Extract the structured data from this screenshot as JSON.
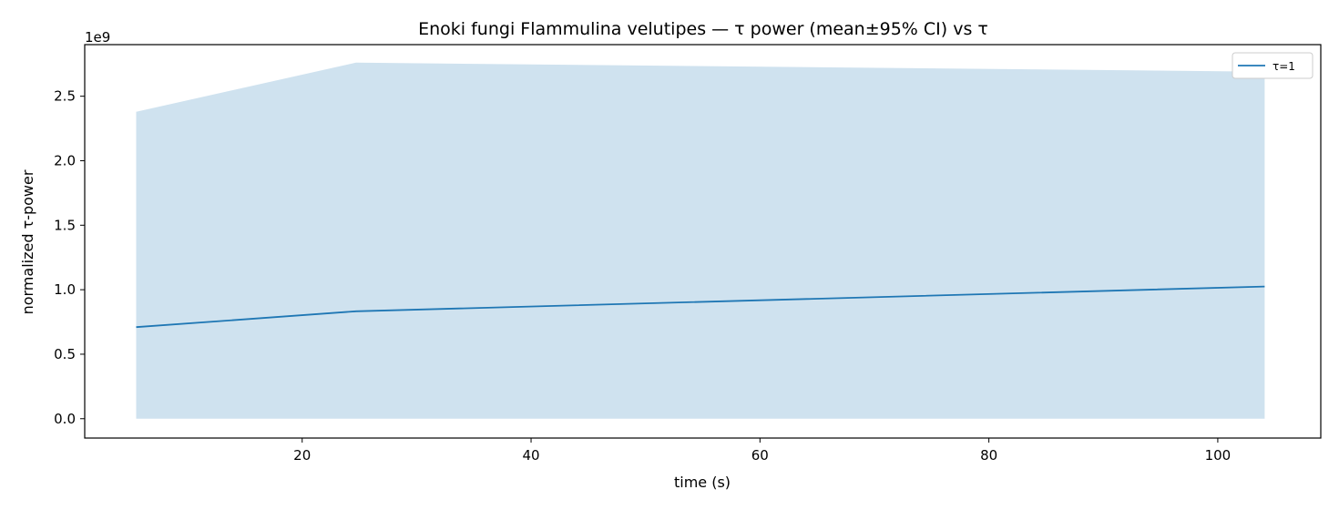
{
  "chart_data": {
    "type": "line",
    "title": "Enoki fungi Flammulina velutipes — τ power (mean±95% CI) vs τ",
    "xlabel": "time (s)",
    "ylabel": "normalized τ-power",
    "y_offset_text": "1e9",
    "y_scale": 1000000000,
    "xlim": [
      1,
      109
    ],
    "ylim": [
      -150000000,
      2900000000
    ],
    "xticks": [
      20,
      40,
      60,
      80,
      100
    ],
    "xtick_labels": [
      "20",
      "40",
      "60",
      "80",
      "100"
    ],
    "yticks": [
      0,
      500000000,
      1000000000,
      1500000000,
      2000000000,
      2500000000
    ],
    "ytick_labels": [
      "0.0",
      "0.5",
      "1.0",
      "1.5",
      "2.0",
      "2.5"
    ],
    "grid": false,
    "legend_position": "top-right",
    "series": [
      {
        "name": "τ=1",
        "color": "#1f77b4",
        "band_color": "#cfe2ef",
        "x": [
          5.5,
          24.7,
          104.1
        ],
        "y": [
          710000000,
          833000000,
          1025000000
        ],
        "ci_lower": [
          0,
          0,
          0
        ],
        "ci_upper": [
          2380000000,
          2760000000,
          2690000000
        ]
      }
    ]
  }
}
